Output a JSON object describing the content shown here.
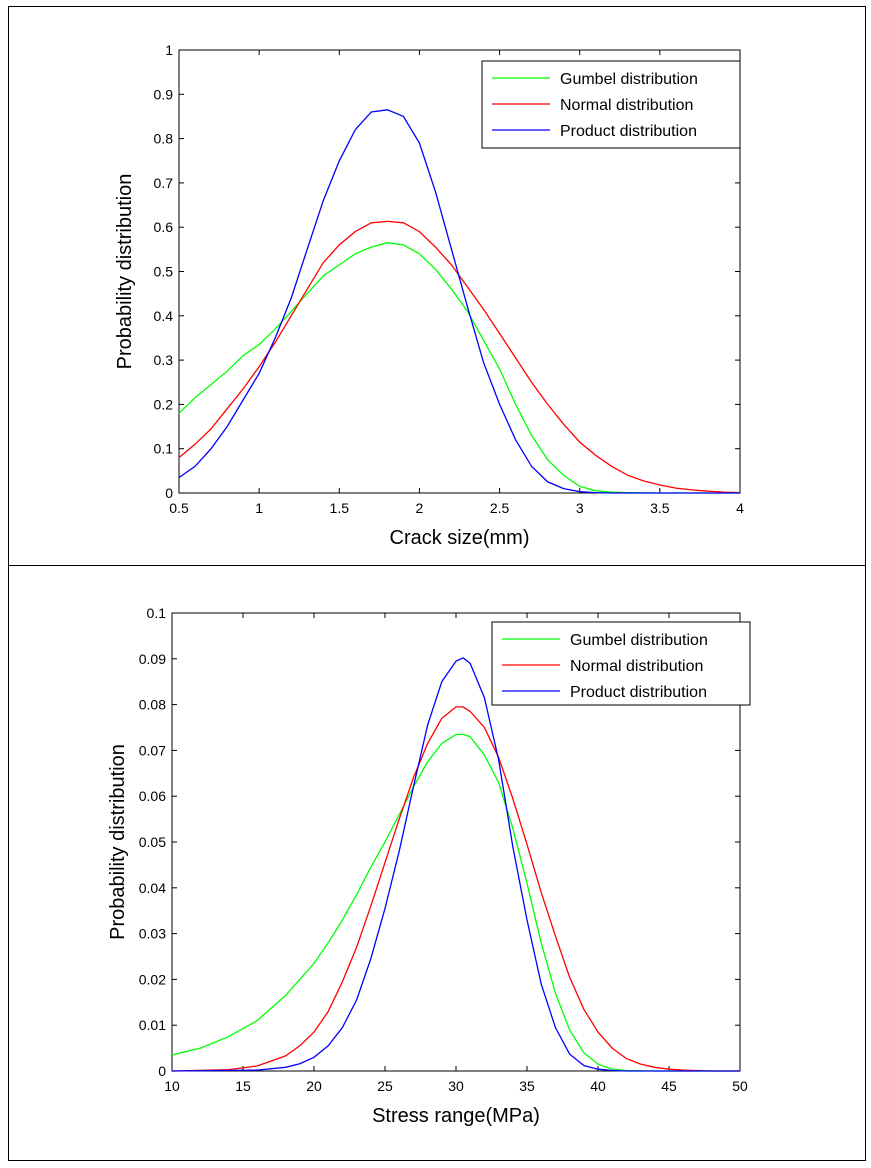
{
  "chart_data": [
    {
      "type": "line",
      "xlabel": "Crack size(mm)",
      "ylabel": "Probability distribution",
      "xlim": [
        0.5,
        4
      ],
      "ylim": [
        0,
        1
      ],
      "xticks": [
        "0.5",
        "1",
        "1.5",
        "2",
        "2.5",
        "3",
        "3.5",
        "4"
      ],
      "yticks": [
        "0",
        "0.1",
        "0.2",
        "0.3",
        "0.4",
        "0.5",
        "0.6",
        "0.7",
        "0.8",
        "0.9",
        "1"
      ],
      "grid": false,
      "legend_position": "top-right",
      "series": [
        {
          "name": "Gumbel distribution",
          "color": "#00ff00",
          "x": [
            0.5,
            0.6,
            0.7,
            0.8,
            0.9,
            1.0,
            1.1,
            1.2,
            1.3,
            1.4,
            1.5,
            1.6,
            1.7,
            1.8,
            1.9,
            2.0,
            2.1,
            2.2,
            2.3,
            2.4,
            2.5,
            2.6,
            2.7,
            2.8,
            2.9,
            3.0,
            3.1,
            3.2,
            3.3,
            3.5,
            3.7,
            4.0
          ],
          "y": [
            0.18,
            0.215,
            0.245,
            0.275,
            0.31,
            0.335,
            0.37,
            0.41,
            0.45,
            0.49,
            0.515,
            0.54,
            0.555,
            0.565,
            0.56,
            0.54,
            0.505,
            0.46,
            0.41,
            0.345,
            0.28,
            0.2,
            0.13,
            0.075,
            0.04,
            0.015,
            0.005,
            0.002,
            0.001,
            0.0,
            0.0,
            0.0
          ]
        },
        {
          "name": "Normal distribution",
          "color": "#ff0000",
          "x": [
            0.5,
            0.6,
            0.7,
            0.8,
            0.9,
            1.0,
            1.1,
            1.2,
            1.3,
            1.4,
            1.5,
            1.6,
            1.7,
            1.8,
            1.9,
            2.0,
            2.1,
            2.2,
            2.3,
            2.4,
            2.5,
            2.6,
            2.7,
            2.8,
            2.9,
            3.0,
            3.1,
            3.2,
            3.3,
            3.4,
            3.5,
            3.6,
            3.7,
            3.8,
            3.9,
            4.0
          ],
          "y": [
            0.08,
            0.11,
            0.145,
            0.19,
            0.235,
            0.285,
            0.34,
            0.4,
            0.46,
            0.52,
            0.56,
            0.59,
            0.61,
            0.613,
            0.61,
            0.59,
            0.555,
            0.515,
            0.465,
            0.415,
            0.36,
            0.305,
            0.25,
            0.2,
            0.155,
            0.115,
            0.085,
            0.06,
            0.04,
            0.027,
            0.018,
            0.011,
            0.007,
            0.004,
            0.002,
            0.001
          ]
        },
        {
          "name": "Product distribution",
          "color": "#0000ff",
          "x": [
            0.5,
            0.6,
            0.7,
            0.8,
            0.9,
            1.0,
            1.1,
            1.2,
            1.3,
            1.4,
            1.5,
            1.6,
            1.7,
            1.8,
            1.9,
            2.0,
            2.1,
            2.2,
            2.3,
            2.4,
            2.5,
            2.6,
            2.7,
            2.8,
            2.9,
            3.0,
            3.1,
            3.2,
            3.5,
            4.0
          ],
          "y": [
            0.035,
            0.06,
            0.1,
            0.15,
            0.21,
            0.27,
            0.35,
            0.44,
            0.55,
            0.66,
            0.75,
            0.82,
            0.86,
            0.865,
            0.85,
            0.79,
            0.68,
            0.55,
            0.42,
            0.295,
            0.2,
            0.12,
            0.06,
            0.025,
            0.01,
            0.003,
            0.001,
            0.0,
            0.0,
            0.0
          ]
        }
      ]
    },
    {
      "type": "line",
      "xlabel": "Stress range(MPa)",
      "ylabel": "Probability distribution",
      "xlim": [
        10,
        50
      ],
      "ylim": [
        0,
        0.1
      ],
      "xticks": [
        "10",
        "15",
        "20",
        "25",
        "30",
        "35",
        "40",
        "45",
        "50"
      ],
      "yticks": [
        "0",
        "0.01",
        "0.02",
        "0.03",
        "0.04",
        "0.05",
        "0.06",
        "0.07",
        "0.08",
        "0.09",
        "0.1"
      ],
      "grid": false,
      "legend_position": "top-right",
      "series": [
        {
          "name": "Gumbel distribution",
          "color": "#00ff00",
          "x": [
            10,
            12,
            14,
            16,
            18,
            20,
            21,
            22,
            23,
            24,
            25,
            26,
            27,
            28,
            29,
            30,
            30.5,
            31,
            32,
            33,
            34,
            35,
            36,
            37,
            38,
            39,
            40,
            41,
            42,
            44,
            46,
            50
          ],
          "y": [
            0.0035,
            0.005,
            0.0075,
            0.011,
            0.0165,
            0.0235,
            0.028,
            0.033,
            0.0385,
            0.0445,
            0.05,
            0.056,
            0.062,
            0.0675,
            0.0715,
            0.0735,
            0.0735,
            0.073,
            0.069,
            0.063,
            0.053,
            0.041,
            0.028,
            0.017,
            0.009,
            0.004,
            0.0015,
            0.0004,
            0.0001,
            0.0,
            0.0,
            0.0
          ]
        },
        {
          "name": "Normal distribution",
          "color": "#ff0000",
          "x": [
            10,
            14,
            16,
            18,
            19,
            20,
            21,
            22,
            23,
            24,
            25,
            26,
            27,
            28,
            29,
            30,
            30.5,
            31,
            32,
            33,
            34,
            35,
            36,
            37,
            38,
            39,
            40,
            41,
            42,
            43,
            44,
            45,
            46,
            48,
            50
          ],
          "y": [
            0.0,
            0.0003,
            0.0011,
            0.0033,
            0.0055,
            0.0085,
            0.013,
            0.0195,
            0.027,
            0.036,
            0.0455,
            0.055,
            0.064,
            0.0715,
            0.077,
            0.0795,
            0.0795,
            0.0785,
            0.075,
            0.0685,
            0.0595,
            0.0495,
            0.039,
            0.0295,
            0.0205,
            0.0135,
            0.0085,
            0.005,
            0.0027,
            0.0015,
            0.0008,
            0.0004,
            0.0002,
            0.0,
            0.0
          ]
        },
        {
          "name": "Product distribution",
          "color": "#0000ff",
          "x": [
            10,
            16,
            18,
            19,
            20,
            21,
            22,
            23,
            24,
            25,
            26,
            27,
            28,
            29,
            30,
            30.5,
            31,
            32,
            33,
            34,
            35,
            36,
            37,
            38,
            39,
            40,
            41,
            42,
            45,
            50
          ],
          "y": [
            0.0,
            0.0002,
            0.0008,
            0.0016,
            0.003,
            0.0055,
            0.0095,
            0.0155,
            0.0245,
            0.0355,
            0.048,
            0.062,
            0.0755,
            0.085,
            0.0895,
            0.0902,
            0.089,
            0.0815,
            0.068,
            0.049,
            0.033,
            0.019,
            0.0095,
            0.0037,
            0.0012,
            0.0004,
            0.0001,
            0.0,
            0.0,
            0.0
          ]
        }
      ]
    }
  ]
}
